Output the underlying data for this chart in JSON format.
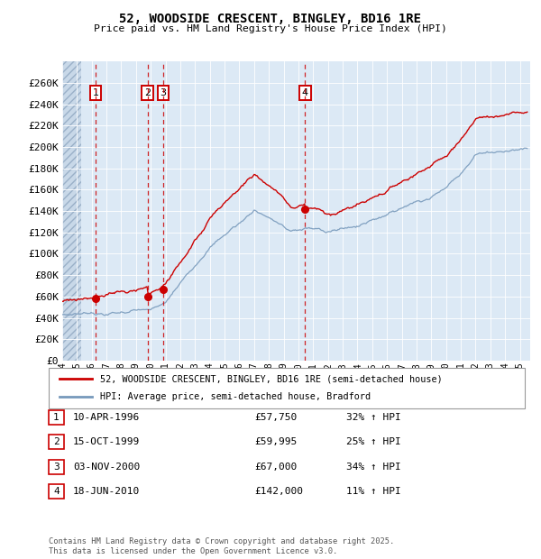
{
  "title": "52, WOODSIDE CRESCENT, BINGLEY, BD16 1RE",
  "subtitle": "Price paid vs. HM Land Registry's House Price Index (HPI)",
  "footer": "Contains HM Land Registry data © Crown copyright and database right 2025.\nThis data is licensed under the Open Government Licence v3.0.",
  "legend_label_red": "52, WOODSIDE CRESCENT, BINGLEY, BD16 1RE (semi-detached house)",
  "legend_label_blue": "HPI: Average price, semi-detached house, Bradford",
  "transactions": [
    {
      "num": 1,
      "date_label": "10-APR-1996",
      "date_x": 1996.27,
      "price": 57750,
      "pct": "32% ↑ HPI"
    },
    {
      "num": 2,
      "date_label": "15-OCT-1999",
      "date_x": 1999.79,
      "price": 59995,
      "pct": "25% ↑ HPI"
    },
    {
      "num": 3,
      "date_label": "03-NOV-2000",
      "date_x": 2000.84,
      "price": 67000,
      "pct": "34% ↑ HPI"
    },
    {
      "num": 4,
      "date_label": "18-JUN-2010",
      "date_x": 2010.46,
      "price": 142000,
      "pct": "11% ↑ HPI"
    }
  ],
  "ylim": [
    0,
    280000
  ],
  "xlim": [
    1994.0,
    2025.7
  ],
  "yticks": [
    0,
    20000,
    40000,
    60000,
    80000,
    100000,
    120000,
    140000,
    160000,
    180000,
    200000,
    220000,
    240000,
    260000
  ],
  "ytick_labels": [
    "£0",
    "£20K",
    "£40K",
    "£60K",
    "£80K",
    "£100K",
    "£120K",
    "£140K",
    "£160K",
    "£180K",
    "£200K",
    "£220K",
    "£240K",
    "£260K"
  ],
  "bg_color": "#dce9f5",
  "hatch_color": "#c8d8e8",
  "grid_color": "#ffffff",
  "red_color": "#cc0000",
  "blue_color": "#7799bb",
  "dashed_vline_color": "#cc0000",
  "hatch_end_x": 1995.3
}
